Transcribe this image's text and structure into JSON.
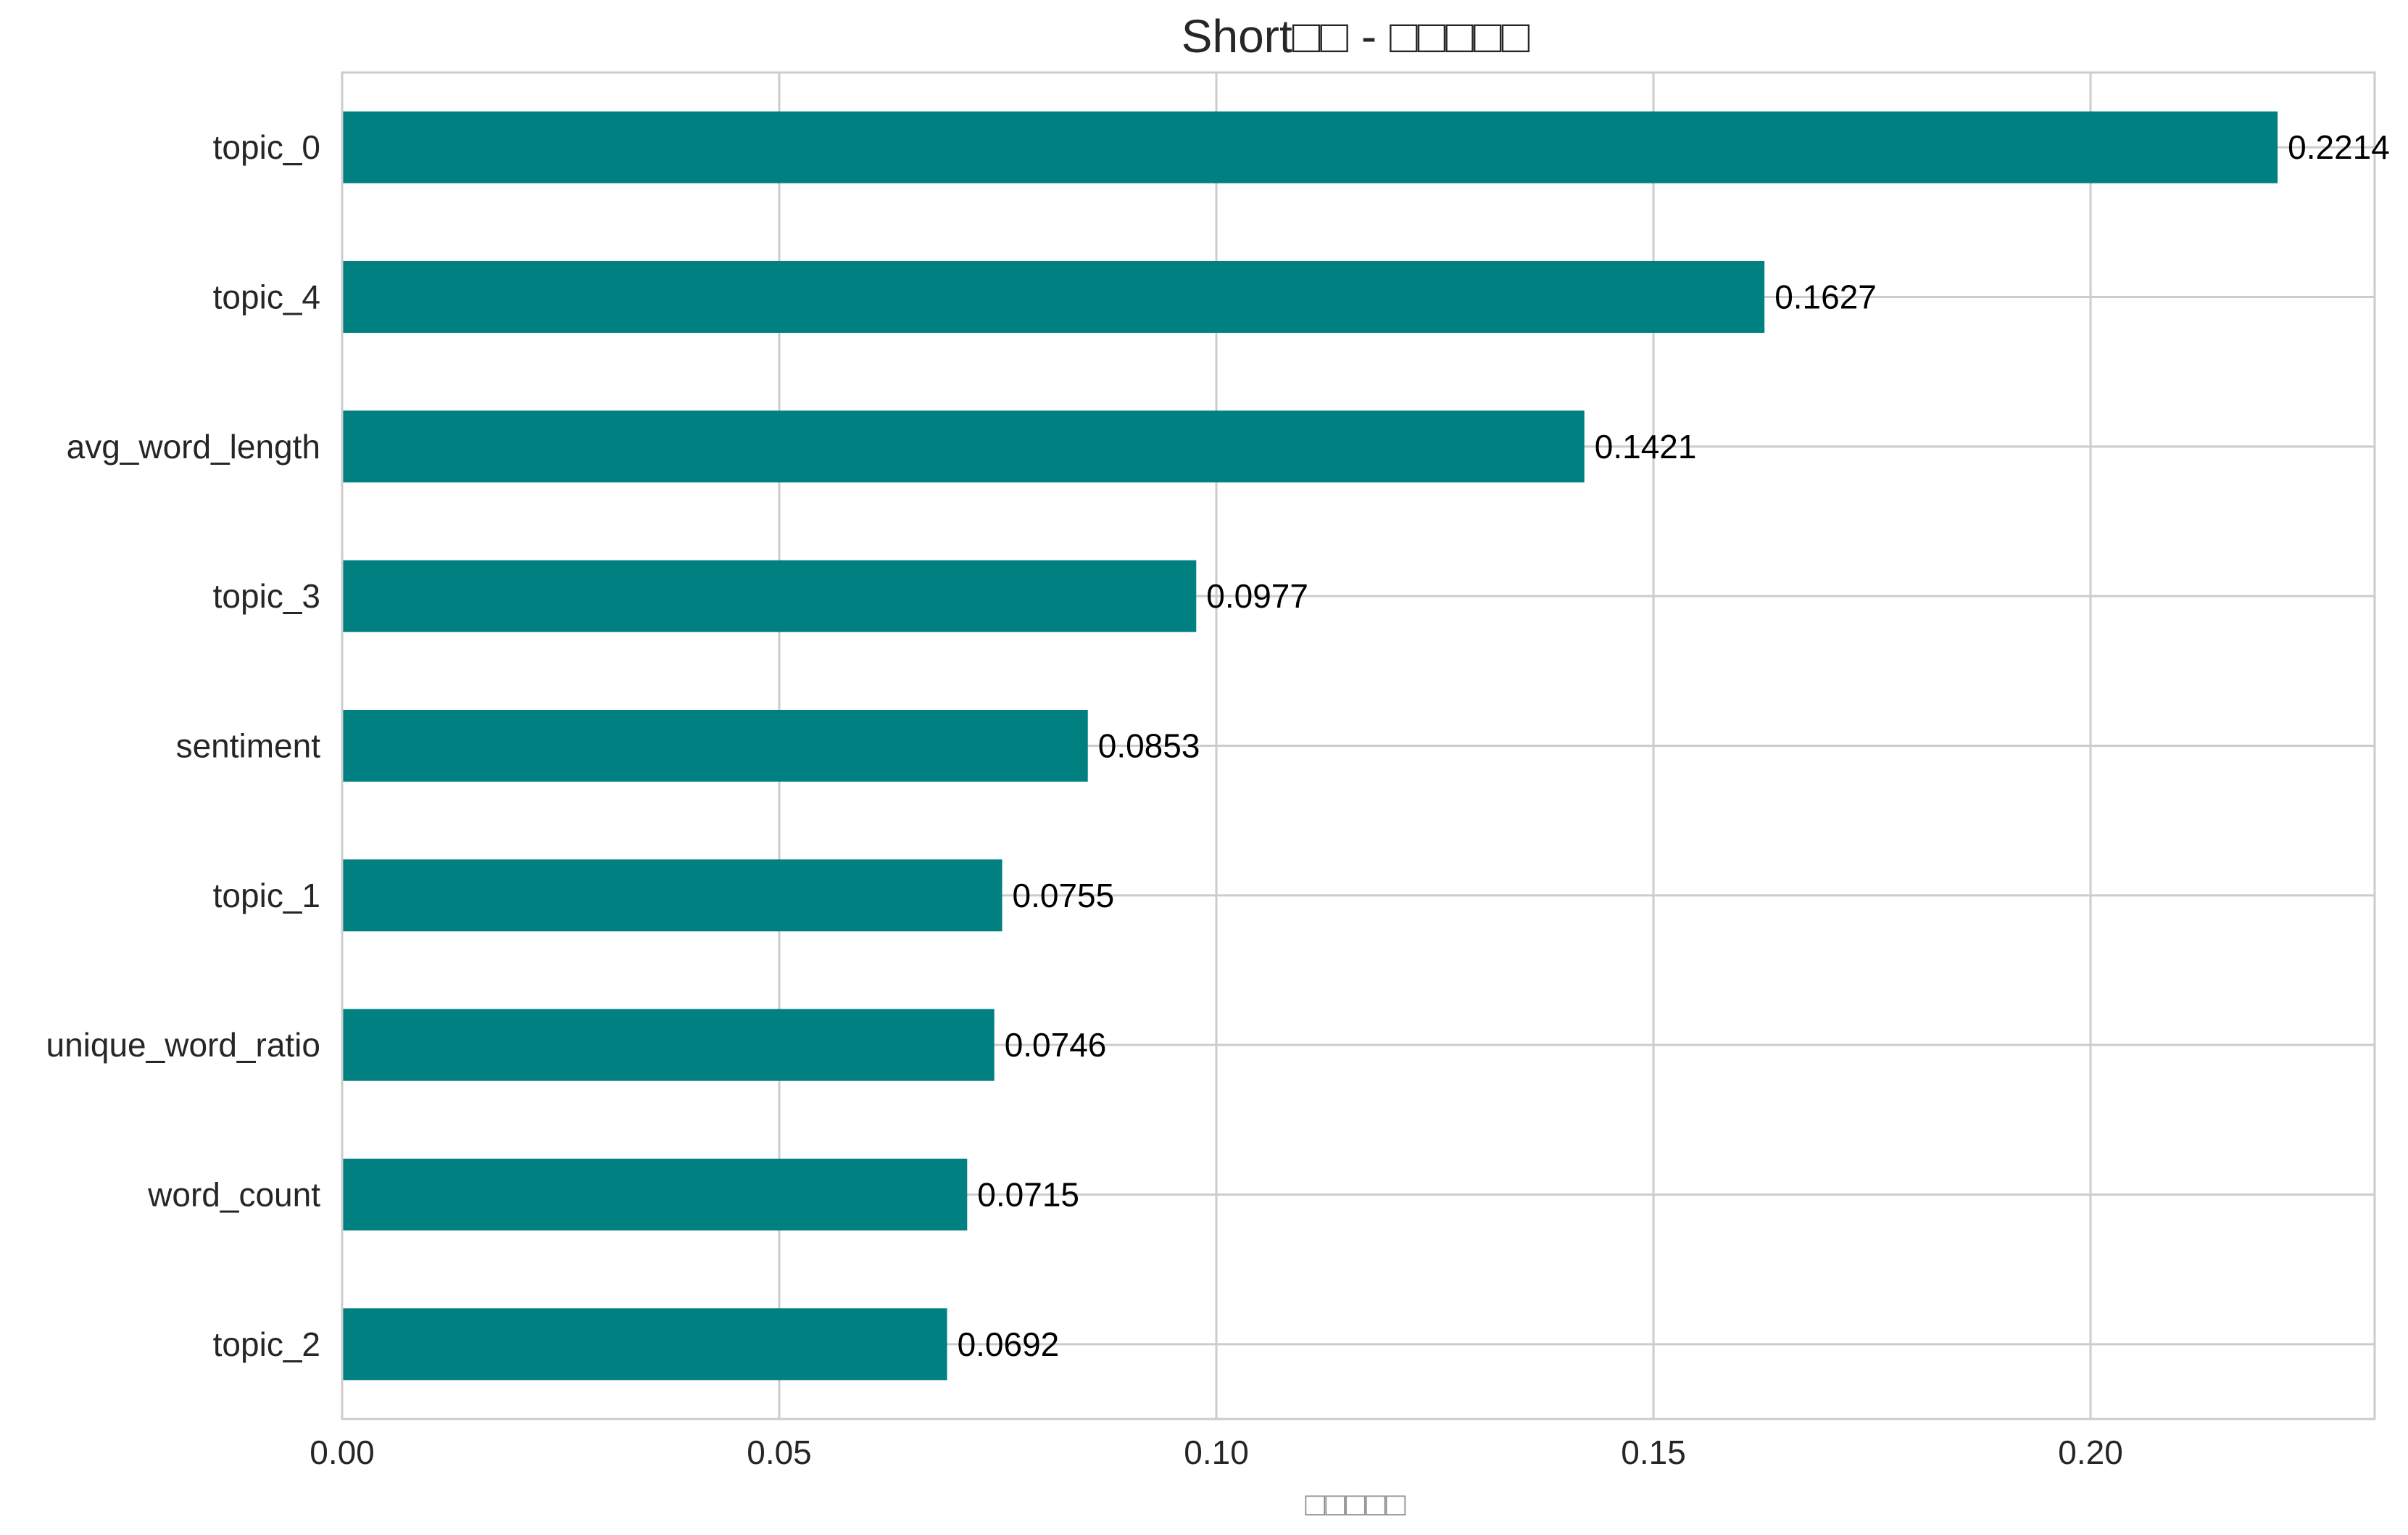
{
  "chart_data": {
    "type": "bar",
    "orientation": "horizontal",
    "title": "Short□□ - □□□□□",
    "xlabel": "□□□□□",
    "ylabel": "",
    "categories": [
      "topic_0",
      "topic_4",
      "avg_word_length",
      "topic_3",
      "sentiment",
      "topic_1",
      "unique_word_ratio",
      "word_count",
      "topic_2"
    ],
    "values": [
      0.2214,
      0.1627,
      0.1421,
      0.0977,
      0.0853,
      0.0755,
      0.0746,
      0.0715,
      0.0692
    ],
    "data_labels": [
      "0.2214",
      "0.1627",
      "0.1421",
      "0.0977",
      "0.0853",
      "0.0755",
      "0.0746",
      "0.0715",
      "0.0692"
    ],
    "xlim": [
      0,
      0.2325
    ],
    "xticks": [
      0.0,
      0.05,
      0.1,
      0.15,
      0.2
    ],
    "xtick_labels": [
      "0.00",
      "0.05",
      "0.10",
      "0.15",
      "0.20"
    ],
    "grid": true,
    "legend": "none",
    "bar_color": "#008080",
    "grid_color": "#cccccc",
    "axis_color": "#cccccc"
  }
}
